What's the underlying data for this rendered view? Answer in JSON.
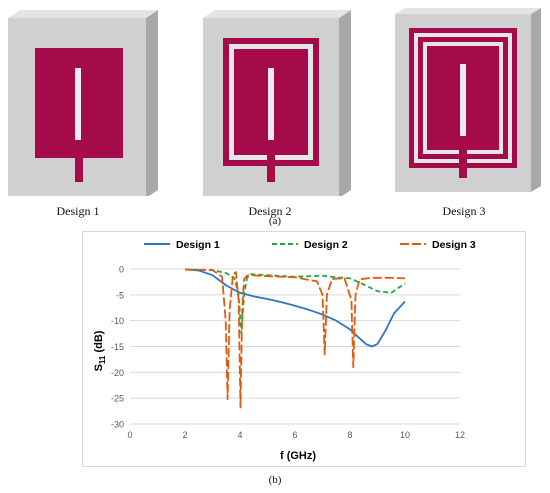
{
  "figure": {
    "designs": [
      {
        "caption": "Design 1"
      },
      {
        "caption": "Design 2"
      },
      {
        "caption": "Design 3"
      }
    ],
    "panel_a_label": "(a)",
    "panel_b_label": "(b)"
  },
  "colors": {
    "board": "#d0d0d0",
    "board_side": "#a8a8a8",
    "patch": "#a50a4b",
    "design1": "#2e75c8",
    "design2": "#22a84a",
    "design3": "#e05a10"
  },
  "chart_data": {
    "type": "line",
    "ylabel_main": "S",
    "ylabel_sub": "11",
    "ylabel_unit": " (dB)",
    "xlabel": "f (GHz)",
    "xlim": [
      0,
      12
    ],
    "ylim": [
      -30,
      0
    ],
    "xticks": [
      "0",
      "2",
      "4",
      "6",
      "8",
      "10",
      "12"
    ],
    "yticks": [
      "0",
      "-5",
      "-10",
      "-15",
      "-20",
      "-25",
      "-30"
    ],
    "grid": true,
    "legend_position": "top",
    "series": [
      {
        "name": "Design 1",
        "style": "solid",
        "x": [
          2.0,
          2.5,
          3.0,
          3.5,
          4.0,
          4.5,
          5.0,
          5.5,
          6.0,
          6.5,
          7.0,
          7.5,
          8.0,
          8.3,
          8.6,
          8.8,
          9.0,
          9.3,
          9.6,
          10.0
        ],
        "y": [
          -0.1,
          -0.3,
          -1.2,
          -3.2,
          -4.6,
          -5.3,
          -5.8,
          -6.4,
          -7.1,
          -7.9,
          -8.8,
          -10.0,
          -11.7,
          -13.2,
          -14.6,
          -15.0,
          -14.5,
          -11.8,
          -8.6,
          -6.3
        ]
      },
      {
        "name": "Design 2",
        "style": "dashed",
        "x": [
          2.0,
          3.0,
          3.5,
          3.8,
          3.95,
          4.05,
          4.15,
          4.25,
          4.4,
          5.0,
          6.0,
          6.5,
          7.0,
          7.5,
          8.0,
          8.5,
          9.0,
          9.5,
          10.0
        ],
        "y": [
          -0.1,
          -0.2,
          -0.8,
          -1.8,
          -5.0,
          -12.5,
          -5.0,
          -1.8,
          -1.0,
          -1.2,
          -1.5,
          -1.4,
          -1.3,
          -1.6,
          -1.8,
          -3.0,
          -4.3,
          -4.6,
          -2.8
        ]
      },
      {
        "name": "Design 3",
        "style": "dashdot",
        "x": [
          2.0,
          3.0,
          3.35,
          3.48,
          3.55,
          3.62,
          3.75,
          3.85,
          3.95,
          4.02,
          4.08,
          4.15,
          4.25,
          4.4,
          5.0,
          6.0,
          6.8,
          7.0,
          7.08,
          7.16,
          7.35,
          7.8,
          8.05,
          8.12,
          8.2,
          8.35,
          8.8,
          9.5,
          10.0
        ],
        "y": [
          -0.1,
          -0.2,
          -1.5,
          -10.0,
          -25.2,
          -8.0,
          -1.0,
          -0.6,
          -6.0,
          -26.8,
          -8.0,
          -2.0,
          -1.3,
          -1.2,
          -1.4,
          -1.6,
          -2.4,
          -5.0,
          -16.5,
          -5.0,
          -1.9,
          -1.8,
          -6.0,
          -19.0,
          -5.0,
          -2.0,
          -1.7,
          -1.7,
          -1.8
        ]
      }
    ]
  }
}
